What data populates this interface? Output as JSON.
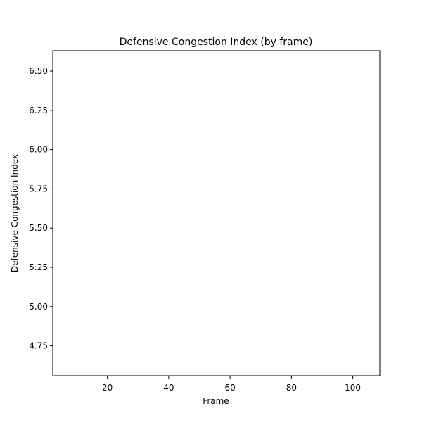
{
  "chart_data": {
    "type": "line",
    "title": "Defensive Congestion Index (by frame)",
    "xlabel": "Frame",
    "ylabel": "Defensive Congestion Index",
    "xlim": [
      2.2,
      108.8
    ],
    "ylim": [
      4.56,
      6.63
    ],
    "xticks": [
      20,
      40,
      60,
      80,
      100
    ],
    "xtick_labels": [
      "20",
      "40",
      "60",
      "80",
      "100"
    ],
    "yticks": [
      4.75,
      5.0,
      5.25,
      5.5,
      5.75,
      6.0,
      6.25,
      6.5
    ],
    "ytick_labels": [
      "4.75",
      "5.00",
      "5.25",
      "5.50",
      "5.75",
      "6.00",
      "6.25",
      "6.50"
    ],
    "series": [],
    "grid": false,
    "legend": "none"
  }
}
